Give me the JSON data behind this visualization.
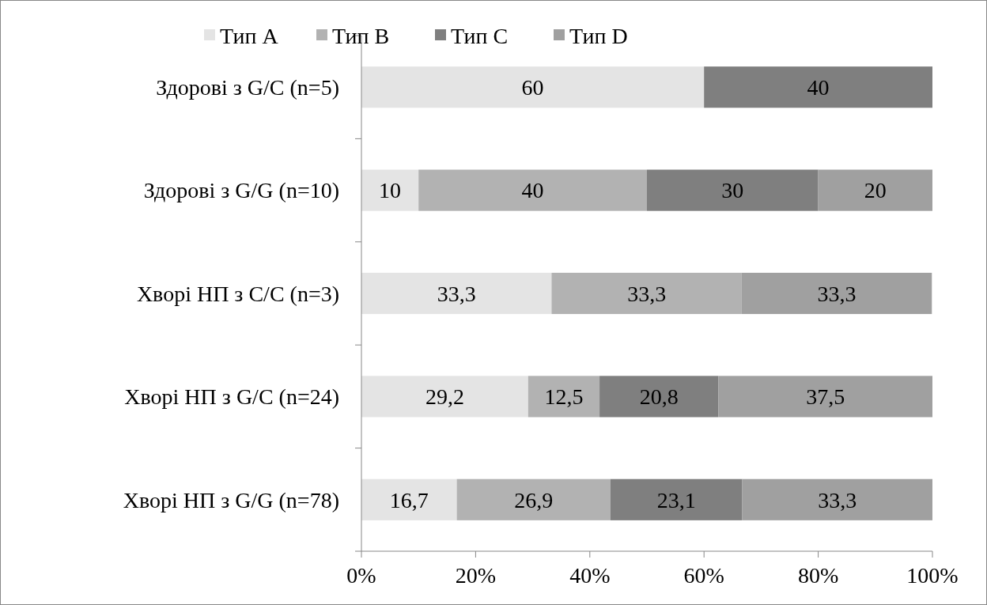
{
  "chart_data": {
    "type": "bar",
    "orientation": "horizontal",
    "stacked": true,
    "legend": "top",
    "categories": [
      "Здорові з G/C (n=5)",
      "Здорові з G/G (n=10)",
      "Хворі НП з C/C (n=3)",
      "Хворі НП з G/C (n=24)",
      "Хворі НП з G/G (n=78)"
    ],
    "series": [
      {
        "name": "Тип A",
        "color": "#e4e4e4",
        "values": [
          60,
          10,
          33.3,
          29.2,
          16.7
        ],
        "value_labels": [
          "60",
          "10",
          "33,3",
          "29,2",
          "16,7"
        ]
      },
      {
        "name": "Тип B",
        "color": "#b2b2b2",
        "values": [
          null,
          40,
          33.3,
          12.5,
          26.9
        ],
        "value_labels": [
          null,
          "40",
          "33,3",
          "12,5",
          "26,9"
        ]
      },
      {
        "name": "Тип C",
        "color": "#7f7f7f",
        "values": [
          40,
          30,
          null,
          20.8,
          23.1
        ],
        "value_labels": [
          "40",
          "30",
          null,
          "20,8",
          "23,1"
        ]
      },
      {
        "name": "Тип D",
        "color": "#a0a0a0",
        "values": [
          null,
          20,
          33.3,
          37.5,
          33.3
        ],
        "value_labels": [
          null,
          "20",
          "33,3",
          "37,5",
          "33,3"
        ]
      }
    ],
    "xlim": [
      0,
      100
    ],
    "xticks": [
      {
        "value": 0,
        "label": "0%"
      },
      {
        "value": 20,
        "label": "20%"
      },
      {
        "value": 40,
        "label": "40%"
      },
      {
        "value": 60,
        "label": "60%"
      },
      {
        "value": 80,
        "label": "80%"
      },
      {
        "value": 100,
        "label": "100%"
      }
    ]
  }
}
